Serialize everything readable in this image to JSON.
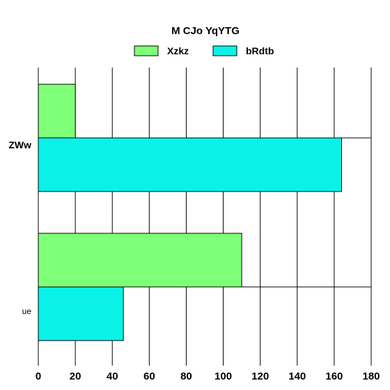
{
  "chart_data": {
    "type": "bar",
    "orientation": "horizontal",
    "title": "M CJo YqYTG",
    "categories": [
      "ZWw",
      "ue"
    ],
    "series": [
      {
        "name": "Xzkz",
        "color": "#80ff78",
        "values": [
          20,
          110
        ]
      },
      {
        "name": "bRdtb",
        "color": "#0af2e8",
        "values": [
          164,
          46
        ]
      }
    ],
    "xlim": [
      0,
      180
    ],
    "xticks": [
      0,
      20,
      40,
      60,
      80,
      100,
      120,
      140,
      160,
      180
    ],
    "xlabel": "",
    "ylabel": "",
    "grid": "vertical",
    "legend_position": "top"
  }
}
